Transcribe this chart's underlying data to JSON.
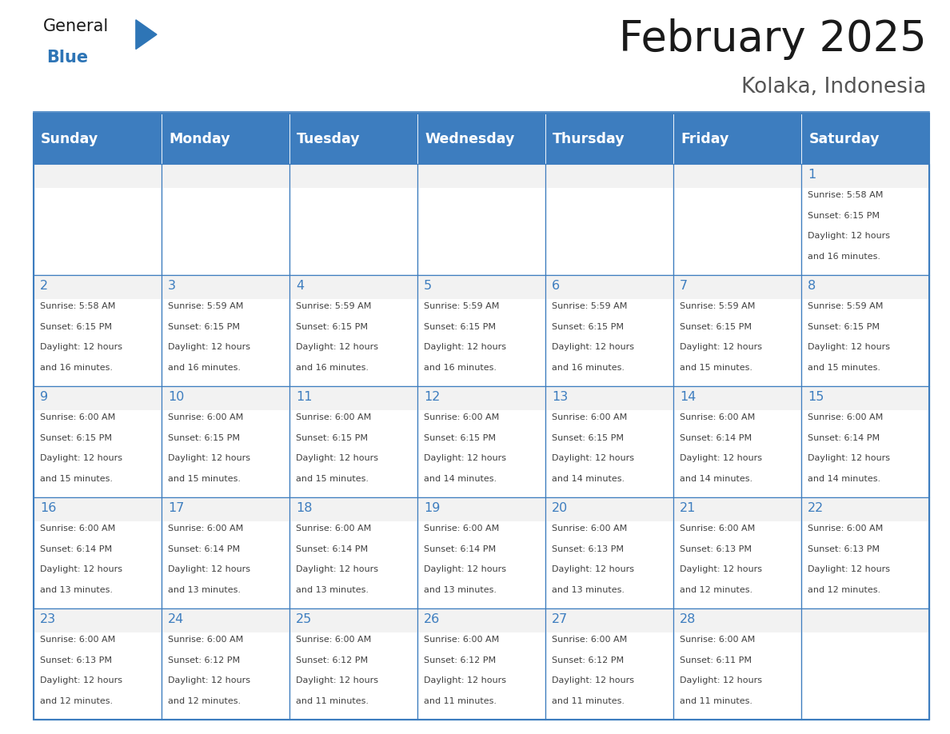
{
  "title": "February 2025",
  "subtitle": "Kolaka, Indonesia",
  "days_of_week": [
    "Sunday",
    "Monday",
    "Tuesday",
    "Wednesday",
    "Thursday",
    "Friday",
    "Saturday"
  ],
  "header_bg": "#3d7dbf",
  "header_text_color": "#FFFFFF",
  "cell_bg_light": "#f2f2f2",
  "cell_bg_white": "#ffffff",
  "cell_border_color": "#3d7dbf",
  "day_num_color": "#3d7dbf",
  "text_color": "#404040",
  "title_color": "#1a1a1a",
  "subtitle_color": "#555555",
  "general_color": "#1a1a1a",
  "blue_color": "#2E75B6",
  "calendar_data": [
    [
      null,
      null,
      null,
      null,
      null,
      null,
      {
        "day": 1,
        "sunrise": "5:58 AM",
        "sunset": "6:15 PM",
        "daylight": "12 hours",
        "daylight2": "and 16 minutes."
      }
    ],
    [
      {
        "day": 2,
        "sunrise": "5:58 AM",
        "sunset": "6:15 PM",
        "daylight": "12 hours",
        "daylight2": "and 16 minutes."
      },
      {
        "day": 3,
        "sunrise": "5:59 AM",
        "sunset": "6:15 PM",
        "daylight": "12 hours",
        "daylight2": "and 16 minutes."
      },
      {
        "day": 4,
        "sunrise": "5:59 AM",
        "sunset": "6:15 PM",
        "daylight": "12 hours",
        "daylight2": "and 16 minutes."
      },
      {
        "day": 5,
        "sunrise": "5:59 AM",
        "sunset": "6:15 PM",
        "daylight": "12 hours",
        "daylight2": "and 16 minutes."
      },
      {
        "day": 6,
        "sunrise": "5:59 AM",
        "sunset": "6:15 PM",
        "daylight": "12 hours",
        "daylight2": "and 16 minutes."
      },
      {
        "day": 7,
        "sunrise": "5:59 AM",
        "sunset": "6:15 PM",
        "daylight": "12 hours",
        "daylight2": "and 15 minutes."
      },
      {
        "day": 8,
        "sunrise": "5:59 AM",
        "sunset": "6:15 PM",
        "daylight": "12 hours",
        "daylight2": "and 15 minutes."
      }
    ],
    [
      {
        "day": 9,
        "sunrise": "6:00 AM",
        "sunset": "6:15 PM",
        "daylight": "12 hours",
        "daylight2": "and 15 minutes."
      },
      {
        "day": 10,
        "sunrise": "6:00 AM",
        "sunset": "6:15 PM",
        "daylight": "12 hours",
        "daylight2": "and 15 minutes."
      },
      {
        "day": 11,
        "sunrise": "6:00 AM",
        "sunset": "6:15 PM",
        "daylight": "12 hours",
        "daylight2": "and 15 minutes."
      },
      {
        "day": 12,
        "sunrise": "6:00 AM",
        "sunset": "6:15 PM",
        "daylight": "12 hours",
        "daylight2": "and 14 minutes."
      },
      {
        "day": 13,
        "sunrise": "6:00 AM",
        "sunset": "6:15 PM",
        "daylight": "12 hours",
        "daylight2": "and 14 minutes."
      },
      {
        "day": 14,
        "sunrise": "6:00 AM",
        "sunset": "6:14 PM",
        "daylight": "12 hours",
        "daylight2": "and 14 minutes."
      },
      {
        "day": 15,
        "sunrise": "6:00 AM",
        "sunset": "6:14 PM",
        "daylight": "12 hours",
        "daylight2": "and 14 minutes."
      }
    ],
    [
      {
        "day": 16,
        "sunrise": "6:00 AM",
        "sunset": "6:14 PM",
        "daylight": "12 hours",
        "daylight2": "and 13 minutes."
      },
      {
        "day": 17,
        "sunrise": "6:00 AM",
        "sunset": "6:14 PM",
        "daylight": "12 hours",
        "daylight2": "and 13 minutes."
      },
      {
        "day": 18,
        "sunrise": "6:00 AM",
        "sunset": "6:14 PM",
        "daylight": "12 hours",
        "daylight2": "and 13 minutes."
      },
      {
        "day": 19,
        "sunrise": "6:00 AM",
        "sunset": "6:14 PM",
        "daylight": "12 hours",
        "daylight2": "and 13 minutes."
      },
      {
        "day": 20,
        "sunrise": "6:00 AM",
        "sunset": "6:13 PM",
        "daylight": "12 hours",
        "daylight2": "and 13 minutes."
      },
      {
        "day": 21,
        "sunrise": "6:00 AM",
        "sunset": "6:13 PM",
        "daylight": "12 hours",
        "daylight2": "and 12 minutes."
      },
      {
        "day": 22,
        "sunrise": "6:00 AM",
        "sunset": "6:13 PM",
        "daylight": "12 hours",
        "daylight2": "and 12 minutes."
      }
    ],
    [
      {
        "day": 23,
        "sunrise": "6:00 AM",
        "sunset": "6:13 PM",
        "daylight": "12 hours",
        "daylight2": "and 12 minutes."
      },
      {
        "day": 24,
        "sunrise": "6:00 AM",
        "sunset": "6:12 PM",
        "daylight": "12 hours",
        "daylight2": "and 12 minutes."
      },
      {
        "day": 25,
        "sunrise": "6:00 AM",
        "sunset": "6:12 PM",
        "daylight": "12 hours",
        "daylight2": "and 11 minutes."
      },
      {
        "day": 26,
        "sunrise": "6:00 AM",
        "sunset": "6:12 PM",
        "daylight": "12 hours",
        "daylight2": "and 11 minutes."
      },
      {
        "day": 27,
        "sunrise": "6:00 AM",
        "sunset": "6:12 PM",
        "daylight": "12 hours",
        "daylight2": "and 11 minutes."
      },
      {
        "day": 28,
        "sunrise": "6:00 AM",
        "sunset": "6:11 PM",
        "daylight": "12 hours",
        "daylight2": "and 11 minutes."
      },
      null
    ]
  ]
}
